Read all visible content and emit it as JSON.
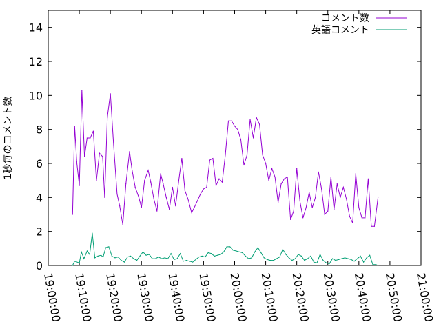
{
  "chart_data": {
    "type": "line",
    "title": "",
    "xlabel": "",
    "ylabel": "1秒毎のコメント数",
    "ylim": [
      0,
      15
    ],
    "yticks": [
      0,
      2,
      4,
      6,
      8,
      10,
      12,
      14
    ],
    "xlim": [
      "19:00:00",
      "21:00:00"
    ],
    "xticks": [
      "19:00:00",
      "19:10:00",
      "19:20:00",
      "19:30:00",
      "19:40:00",
      "19:50:00",
      "20:00:00",
      "20:10:00",
      "20:20:00",
      "20:30:00",
      "20:40:00",
      "20:50:00",
      "21:00:00"
    ],
    "grid": false,
    "legend": "top-right",
    "series": [
      {
        "name": "コメント数",
        "color": "#9400d3",
        "points": [
          [
            "19:07:50",
            3.0
          ],
          [
            "19:08:30",
            8.2
          ],
          [
            "19:09:10",
            6.1
          ],
          [
            "19:10:00",
            4.7
          ],
          [
            "19:10:50",
            10.3
          ],
          [
            "19:11:40",
            6.4
          ],
          [
            "19:12:30",
            7.5
          ],
          [
            "19:13:30",
            7.5
          ],
          [
            "19:14:30",
            7.9
          ],
          [
            "19:15:30",
            5.0
          ],
          [
            "19:16:30",
            6.6
          ],
          [
            "19:17:30",
            6.4
          ],
          [
            "19:18:10",
            4.0
          ],
          [
            "19:19:00",
            8.7
          ],
          [
            "19:20:00",
            10.1
          ],
          [
            "19:21:00",
            7.2
          ],
          [
            "19:22:10",
            4.2
          ],
          [
            "19:23:00",
            3.5
          ],
          [
            "19:24:00",
            2.4
          ],
          [
            "19:25:00",
            4.8
          ],
          [
            "19:26:10",
            6.7
          ],
          [
            "19:27:00",
            5.6
          ],
          [
            "19:28:00",
            4.6
          ],
          [
            "19:29:10",
            4.0
          ],
          [
            "19:30:00",
            3.4
          ],
          [
            "19:31:00",
            5.0
          ],
          [
            "19:32:10",
            5.6
          ],
          [
            "19:33:00",
            4.9
          ],
          [
            "19:34:00",
            3.9
          ],
          [
            "19:35:00",
            3.2
          ],
          [
            "19:36:10",
            5.4
          ],
          [
            "19:37:00",
            4.8
          ],
          [
            "19:38:00",
            4.0
          ],
          [
            "19:39:00",
            3.3
          ],
          [
            "19:40:00",
            4.6
          ],
          [
            "19:41:00",
            3.5
          ],
          [
            "19:42:10",
            5.2
          ],
          [
            "19:43:00",
            6.3
          ],
          [
            "19:44:00",
            4.4
          ],
          [
            "19:45:00",
            3.9
          ],
          [
            "19:46:10",
            3.1
          ],
          [
            "19:47:00",
            3.4
          ],
          [
            "19:48:00",
            3.8
          ],
          [
            "19:49:00",
            4.2
          ],
          [
            "19:50:00",
            4.5
          ],
          [
            "19:51:00",
            4.6
          ],
          [
            "19:52:00",
            6.2
          ],
          [
            "19:53:00",
            6.3
          ],
          [
            "19:54:00",
            4.7
          ],
          [
            "19:55:00",
            5.1
          ],
          [
            "19:56:00",
            4.9
          ],
          [
            "19:57:00",
            6.5
          ],
          [
            "19:58:00",
            8.5
          ],
          [
            "19:59:00",
            8.5
          ],
          [
            "20:00:00",
            8.2
          ],
          [
            "20:01:00",
            8.0
          ],
          [
            "20:02:00",
            7.4
          ],
          [
            "20:03:00",
            5.9
          ],
          [
            "20:04:00",
            6.5
          ],
          [
            "20:05:00",
            8.6
          ],
          [
            "20:06:00",
            7.5
          ],
          [
            "20:07:00",
            8.7
          ],
          [
            "20:08:00",
            8.3
          ],
          [
            "20:09:00",
            6.5
          ],
          [
            "20:10:00",
            6.0
          ],
          [
            "20:11:00",
            5.0
          ],
          [
            "20:12:00",
            5.7
          ],
          [
            "20:13:00",
            5.2
          ],
          [
            "20:14:00",
            3.7
          ],
          [
            "20:15:00",
            4.8
          ],
          [
            "20:16:00",
            5.1
          ],
          [
            "20:17:00",
            5.2
          ],
          [
            "20:18:00",
            2.7
          ],
          [
            "20:19:00",
            3.2
          ],
          [
            "20:20:00",
            5.7
          ],
          [
            "20:21:00",
            3.8
          ],
          [
            "20:22:00",
            2.8
          ],
          [
            "20:23:00",
            3.4
          ],
          [
            "20:24:00",
            4.3
          ],
          [
            "20:25:00",
            3.4
          ],
          [
            "20:26:00",
            4.0
          ],
          [
            "20:27:00",
            5.5
          ],
          [
            "20:28:00",
            4.5
          ],
          [
            "20:29:00",
            3.0
          ],
          [
            "20:30:00",
            3.2
          ],
          [
            "20:31:00",
            5.2
          ],
          [
            "20:32:00",
            3.3
          ],
          [
            "20:33:00",
            4.8
          ],
          [
            "20:34:00",
            4.0
          ],
          [
            "20:35:00",
            4.6
          ],
          [
            "20:36:00",
            3.9
          ],
          [
            "20:37:00",
            2.9
          ],
          [
            "20:38:00",
            2.5
          ],
          [
            "20:39:00",
            5.4
          ],
          [
            "20:40:00",
            3.4
          ],
          [
            "20:41:00",
            2.8
          ],
          [
            "20:42:00",
            2.8
          ],
          [
            "20:43:00",
            5.1
          ],
          [
            "20:44:00",
            2.3
          ],
          [
            "20:45:00",
            2.3
          ],
          [
            "20:46:10",
            4.0
          ]
        ]
      },
      {
        "name": "英語コメント",
        "color": "#009e73",
        "points": [
          [
            "19:07:50",
            0.0
          ],
          [
            "19:08:30",
            0.25
          ],
          [
            "19:10:00",
            0.15
          ],
          [
            "19:10:40",
            0.8
          ],
          [
            "19:11:30",
            0.4
          ],
          [
            "19:12:30",
            0.85
          ],
          [
            "19:13:20",
            0.65
          ],
          [
            "19:14:10",
            1.9
          ],
          [
            "19:15:00",
            0.45
          ],
          [
            "19:16:00",
            0.55
          ],
          [
            "19:17:00",
            0.6
          ],
          [
            "19:17:40",
            0.5
          ],
          [
            "19:18:30",
            1.05
          ],
          [
            "19:19:30",
            1.1
          ],
          [
            "19:20:30",
            0.55
          ],
          [
            "19:21:30",
            0.45
          ],
          [
            "19:22:30",
            0.5
          ],
          [
            "19:23:30",
            0.3
          ],
          [
            "19:24:30",
            0.2
          ],
          [
            "19:25:30",
            0.5
          ],
          [
            "19:26:30",
            0.55
          ],
          [
            "19:27:30",
            0.4
          ],
          [
            "19:28:30",
            0.3
          ],
          [
            "19:29:30",
            0.55
          ],
          [
            "19:30:30",
            0.8
          ],
          [
            "19:31:30",
            0.6
          ],
          [
            "19:32:30",
            0.65
          ],
          [
            "19:33:30",
            0.4
          ],
          [
            "19:34:30",
            0.4
          ],
          [
            "19:35:30",
            0.5
          ],
          [
            "19:36:30",
            0.4
          ],
          [
            "19:37:30",
            0.45
          ],
          [
            "19:38:30",
            0.4
          ],
          [
            "19:39:30",
            0.7
          ],
          [
            "19:40:30",
            0.35
          ],
          [
            "19:41:30",
            0.4
          ],
          [
            "19:42:30",
            0.7
          ],
          [
            "19:43:30",
            0.25
          ],
          [
            "19:44:30",
            0.3
          ],
          [
            "19:45:30",
            0.25
          ],
          [
            "19:46:30",
            0.2
          ],
          [
            "19:47:30",
            0.35
          ],
          [
            "19:48:30",
            0.5
          ],
          [
            "19:49:30",
            0.55
          ],
          [
            "19:50:30",
            0.5
          ],
          [
            "19:51:30",
            0.75
          ],
          [
            "19:52:30",
            0.7
          ],
          [
            "19:53:30",
            0.55
          ],
          [
            "19:54:30",
            0.6
          ],
          [
            "19:55:30",
            0.65
          ],
          [
            "19:56:30",
            0.8
          ],
          [
            "19:57:30",
            1.1
          ],
          [
            "19:58:30",
            1.1
          ],
          [
            "19:59:30",
            0.9
          ],
          [
            "20:00:30",
            0.85
          ],
          [
            "20:01:30",
            0.8
          ],
          [
            "20:02:30",
            0.75
          ],
          [
            "20:03:30",
            0.55
          ],
          [
            "20:04:30",
            0.4
          ],
          [
            "20:05:30",
            0.45
          ],
          [
            "20:06:30",
            0.8
          ],
          [
            "20:07:30",
            1.05
          ],
          [
            "20:08:30",
            0.75
          ],
          [
            "20:09:30",
            0.45
          ],
          [
            "20:10:30",
            0.35
          ],
          [
            "20:11:30",
            0.3
          ],
          [
            "20:12:30",
            0.3
          ],
          [
            "20:13:30",
            0.4
          ],
          [
            "20:14:30",
            0.5
          ],
          [
            "20:15:30",
            0.95
          ],
          [
            "20:16:30",
            0.65
          ],
          [
            "20:17:30",
            0.45
          ],
          [
            "20:18:30",
            0.3
          ],
          [
            "20:19:30",
            0.4
          ],
          [
            "20:20:30",
            0.65
          ],
          [
            "20:21:30",
            0.55
          ],
          [
            "20:22:30",
            0.3
          ],
          [
            "20:23:30",
            0.4
          ],
          [
            "20:24:30",
            0.55
          ],
          [
            "20:25:30",
            0.2
          ],
          [
            "20:26:30",
            0.15
          ],
          [
            "20:27:30",
            0.65
          ],
          [
            "20:28:30",
            0.3
          ],
          [
            "20:29:30",
            0.15
          ],
          [
            "20:30:30",
            0.1
          ],
          [
            "20:31:30",
            0.4
          ],
          [
            "20:32:30",
            0.3
          ],
          [
            "20:33:30",
            0.35
          ],
          [
            "20:34:30",
            0.4
          ],
          [
            "20:35:30",
            0.45
          ],
          [
            "20:36:30",
            0.4
          ],
          [
            "20:37:30",
            0.35
          ],
          [
            "20:38:30",
            0.25
          ],
          [
            "20:39:30",
            0.4
          ],
          [
            "20:40:30",
            0.55
          ],
          [
            "20:41:30",
            0.2
          ],
          [
            "20:42:30",
            0.45
          ],
          [
            "20:43:30",
            0.6
          ],
          [
            "20:44:30",
            0.05
          ],
          [
            "20:45:30",
            0.05
          ],
          [
            "20:46:10",
            0.0
          ]
        ]
      }
    ]
  }
}
